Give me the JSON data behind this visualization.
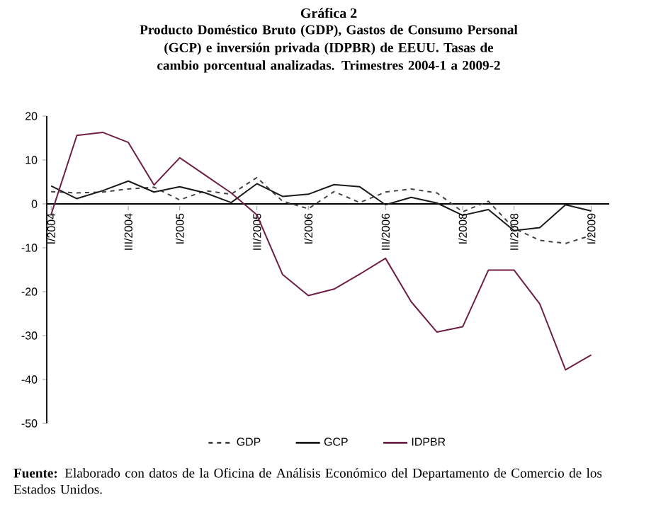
{
  "chart_data": {
    "type": "line",
    "title": "Gráfica 2",
    "subtitle": "Producto Doméstico Bruto (GDP), Gastos de Consumo Personal (GCP) e inversión privada (IDPBR) de EEUU. Tasas de cambio porcentual analizadas. Trimestres 2004-1 a 2009-2",
    "categories": [
      "I/2004",
      null,
      null,
      "III/2004",
      null,
      "I/2005",
      null,
      null,
      "III/2005",
      null,
      "I/2006",
      null,
      null,
      "III/2006",
      null,
      null,
      "I/2008",
      null,
      "III/2008",
      null,
      null,
      "I/2009"
    ],
    "series": [
      {
        "name": "GDP",
        "color": "#444444",
        "line_style": "dashed",
        "values": [
          2.8,
          2.5,
          2.7,
          3.4,
          3.8,
          0.9,
          3.0,
          2.2,
          6.0,
          0.6,
          -1.1,
          2.8,
          0.3,
          2.7,
          3.4,
          2.5,
          -1.8,
          0.6,
          -5.6,
          -8.3,
          -9.0,
          -7.2
        ]
      },
      {
        "name": "GCP",
        "color": "#1a1a1a",
        "line_style": "solid",
        "values": [
          4.1,
          1.2,
          3.0,
          5.2,
          2.7,
          3.9,
          2.5,
          0.3,
          4.6,
          1.7,
          2.2,
          4.4,
          3.9,
          -0.2,
          1.5,
          0.2,
          -2.6,
          -1.3,
          -6.1,
          -5.4,
          -0.2,
          -1.6
        ]
      },
      {
        "name": "IDPBR",
        "color": "#6e1f45",
        "line_style": "solid",
        "values": [
          -2.4,
          15.6,
          16.3,
          14.0,
          4.3,
          10.5,
          6.5,
          2.5,
          -2.5,
          -16.1,
          -20.9,
          -19.4,
          -16.0,
          -12.4,
          -22.3,
          -29.2,
          -28.0,
          -15.1,
          -15.1,
          -22.8,
          -37.8,
          -34.4
        ]
      }
    ],
    "ylim": [
      -50,
      20
    ],
    "yticks": [
      20,
      10,
      0,
      -10,
      -20,
      -30,
      -40,
      -50
    ],
    "grid": false,
    "legend": "bottom",
    "marker": "none",
    "annotations": [
      "**Fuente:** Elaborado con datos de la Oficina de Análisis Económico del Departamento de Comercio de los Estados Unidos."
    ]
  }
}
